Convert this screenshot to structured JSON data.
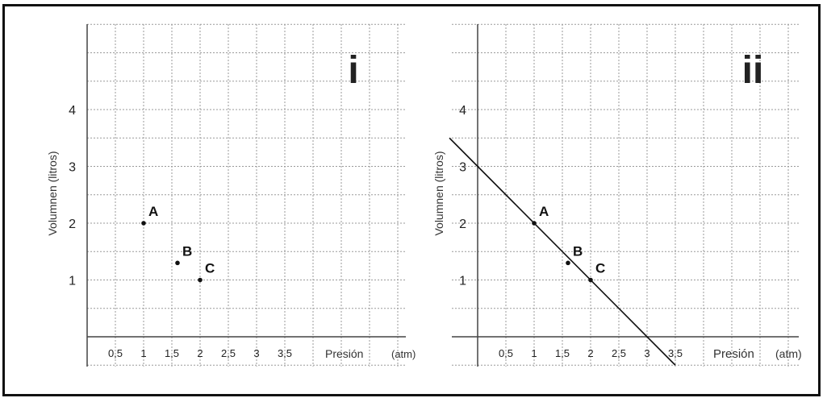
{
  "colors": {
    "grid": "#9a9a9a",
    "axis": "#444444",
    "ink": "#111111"
  },
  "chart_data": [
    {
      "type": "scatter",
      "title": "i",
      "xlabel": "Presión",
      "xunit": "(atm)",
      "ylabel": "Volumnen (litros)",
      "xlim": [
        0,
        5
      ],
      "ylim": [
        -0.5,
        5.5
      ],
      "xticks": [
        0.5,
        1,
        1.5,
        2,
        2.5,
        3,
        3.5
      ],
      "xticklabels": [
        "0,5",
        "1",
        "1,5",
        "2",
        "2,5",
        "3",
        "3,5"
      ],
      "yticks": [
        1,
        2,
        3,
        4
      ],
      "yticklabels": [
        "1",
        "2",
        "3",
        "4"
      ],
      "grid": true,
      "points": [
        {
          "label": "A",
          "x": 1,
          "y": 2
        },
        {
          "label": "B",
          "x": 1.6,
          "y": 1.3
        },
        {
          "label": "C",
          "x": 2,
          "y": 1
        }
      ]
    },
    {
      "type": "scatter",
      "title": "ii",
      "xlabel": "Presión",
      "xunit": "(atm)",
      "ylabel": "Volumnen (litros)",
      "xlim": [
        0,
        5
      ],
      "ylim": [
        -0.5,
        5.5
      ],
      "xticks": [
        0.5,
        1,
        1.5,
        2,
        2.5,
        3,
        3.5
      ],
      "xticklabels": [
        "0,5",
        "1",
        "1,5",
        "2",
        "2,5",
        "3",
        "3,5"
      ],
      "yticks": [
        1,
        2,
        3,
        4
      ],
      "yticklabels": [
        "1",
        "2",
        "3",
        "4"
      ],
      "grid": true,
      "points": [
        {
          "label": "A",
          "x": 1,
          "y": 2
        },
        {
          "label": "B",
          "x": 1.6,
          "y": 1.3
        },
        {
          "label": "C",
          "x": 2,
          "y": 1
        }
      ],
      "line": {
        "from": [
          -0.5,
          3.5
        ],
        "to": [
          3.5,
          -0.5
        ]
      }
    }
  ]
}
